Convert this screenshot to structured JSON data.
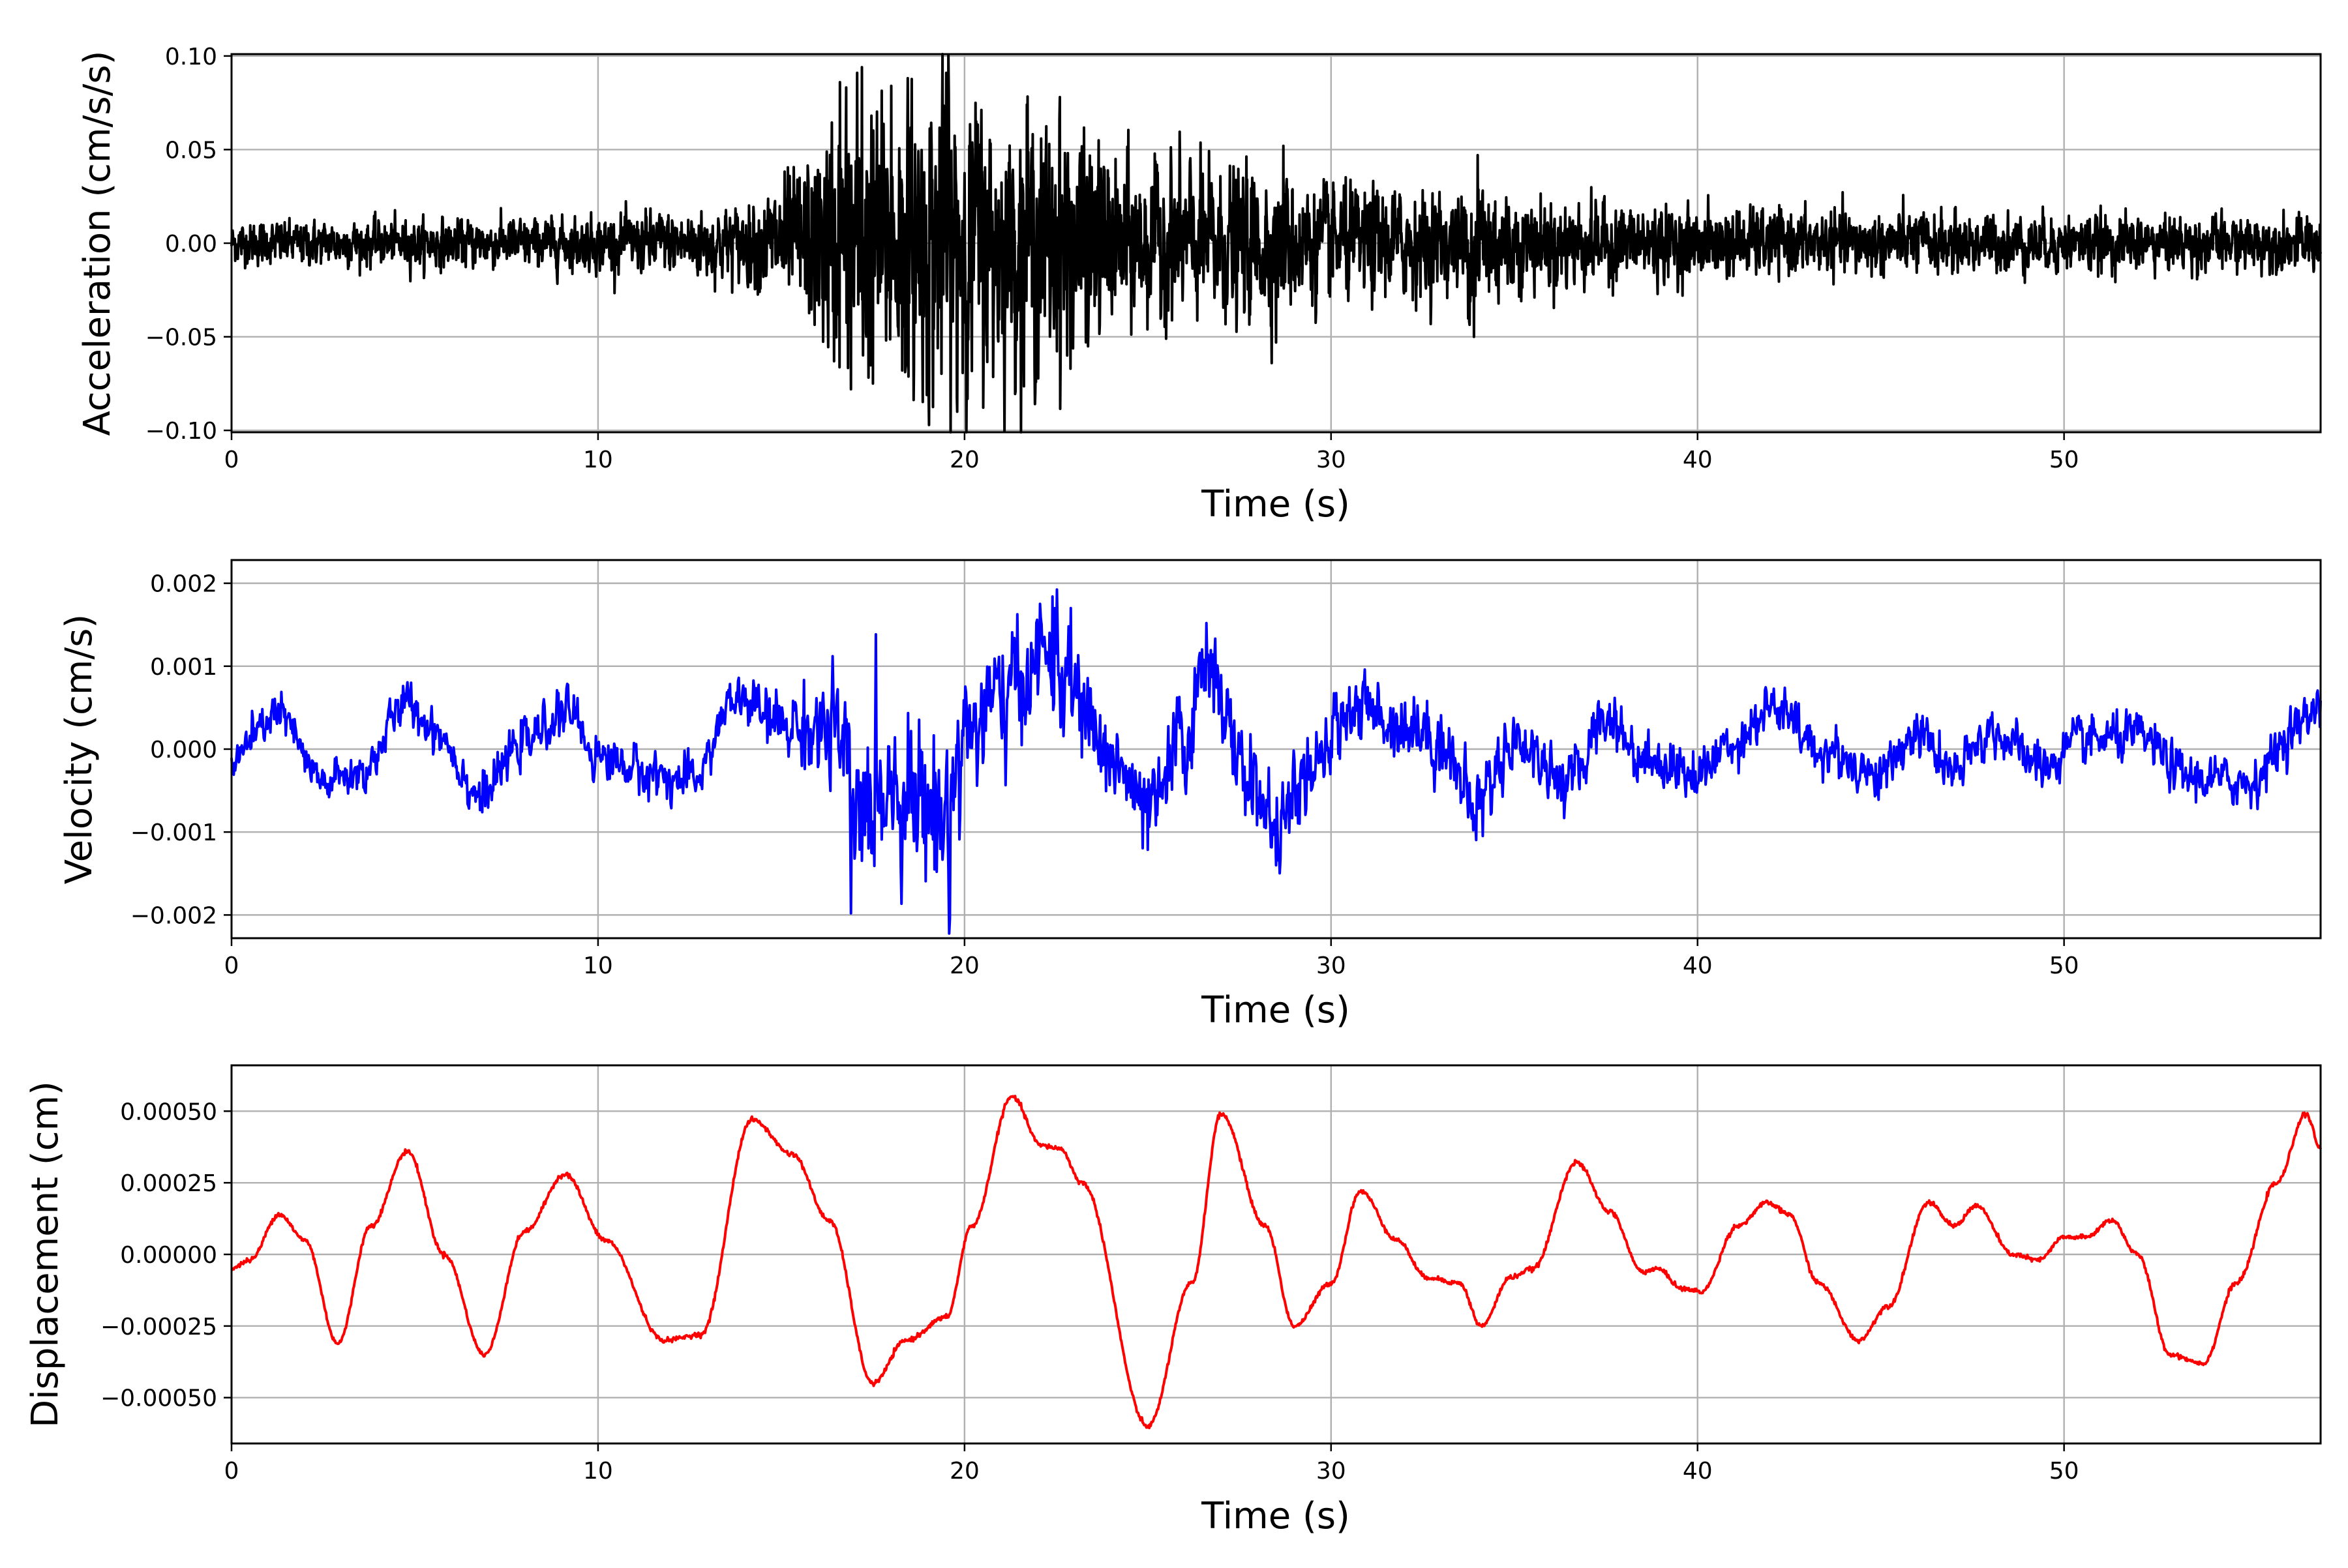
{
  "chart_data": [
    {
      "type": "line",
      "xlabel": "Time (s)",
      "ylabel": "Acceleration (cm/s/s)",
      "xlim": [
        0,
        57
      ],
      "ylim": [
        -0.101,
        0.101
      ],
      "xticks": [
        0,
        10,
        20,
        30,
        40,
        50
      ],
      "xtick_labels": [
        "0",
        "10",
        "20",
        "30",
        "40",
        "50"
      ],
      "yticks": [
        -0.1,
        -0.05,
        0.0,
        0.05,
        0.1
      ],
      "ytick_labels": [
        "−0.10",
        "−0.05",
        "0.00",
        "0.05",
        "0.10"
      ],
      "grid": true,
      "series": [
        {
          "color": "#000000",
          "dt": 0.01,
          "noise": 0.004,
          "envelope": {
            "x": [
              0,
              5,
              10,
              14,
              15.5,
              16.5,
              17,
              18,
              19.5,
              20,
              21,
              22.5,
              24,
              26,
              28,
              30,
              32,
              33.5,
              34,
              35,
              40,
              45,
              50,
              55,
              57
            ],
            "y": [
              0.011,
              0.012,
              0.014,
              0.02,
              0.04,
              0.065,
              0.08,
              0.07,
              0.085,
              0.08,
              0.065,
              0.065,
              0.045,
              0.04,
              0.04,
              0.03,
              0.028,
              0.025,
              0.045,
              0.025,
              0.018,
              0.016,
              0.015,
              0.014,
              0.014
            ]
          },
          "peaks": [
            {
              "x": 16.6,
              "y": 0.086
            },
            {
              "x": 16.9,
              "y": -0.078
            },
            {
              "x": 17.2,
              "y": 0.094
            },
            {
              "x": 17.5,
              "y": -0.075
            },
            {
              "x": 18.0,
              "y": 0.084
            },
            {
              "x": 18.3,
              "y": -0.068
            },
            {
              "x": 19.5,
              "y": 0.091
            },
            {
              "x": 19.8,
              "y": -0.09
            },
            {
              "x": 20.3,
              "y": 0.075
            },
            {
              "x": 21.7,
              "y": 0.074
            },
            {
              "x": 22.6,
              "y": 0.078
            },
            {
              "x": 22.8,
              "y": -0.06
            },
            {
              "x": 28.7,
              "y": 0.052
            },
            {
              "x": 28.5,
              "y": -0.053
            },
            {
              "x": 34.0,
              "y": 0.047
            },
            {
              "x": 33.9,
              "y": -0.05
            }
          ]
        }
      ]
    },
    {
      "type": "line",
      "xlabel": "Time (s)",
      "ylabel": "Velocity (cm/s)",
      "xlim": [
        0,
        57
      ],
      "ylim": [
        -0.00228,
        0.00228
      ],
      "xticks": [
        0,
        10,
        20,
        30,
        40,
        50
      ],
      "xtick_labels": [
        "0",
        "10",
        "20",
        "30",
        "40",
        "50"
      ],
      "yticks": [
        -0.002,
        -0.001,
        0.0,
        0.001,
        0.002
      ],
      "ytick_labels": [
        "−0.002",
        "−0.001",
        "0.000",
        "0.001",
        "0.002"
      ],
      "grid": true,
      "series": [
        {
          "color": "#0000ff",
          "dt": 0.02,
          "noise": 9e-05,
          "envelope": {
            "x": [
              0,
              14,
              15.5,
              16.5,
              17,
              18,
              19.5,
              20,
              21,
              22.5,
              24,
              26.5,
              28,
              30,
              34,
              35,
              40,
              50,
              57
            ],
            "y": [
              0.05,
              0.08,
              0.25,
              0.5,
              0.7,
              0.6,
              0.75,
              0.6,
              0.5,
              0.45,
              0.3,
              0.35,
              0.3,
              0.2,
              0.25,
              0.15,
              0.1,
              0.08,
              0.08
            ]
          },
          "trend": {
            "x": [
              0,
              0.5,
              1.2,
              2.5,
              3.5,
              4.8,
              5.5,
              6.8,
              8,
              9.2,
              10,
              11.5,
              12.5,
              13.8,
              15,
              16.5,
              17,
              18,
              19.5,
              20,
              21,
              22.3,
              23,
              24,
              25,
              26,
              26.7,
              27.5,
              28.5,
              29.5,
              30.5,
              32,
              33,
              33.9,
              35,
              36.5,
              37.5,
              38.5,
              40,
              41,
              42,
              43.5,
              45,
              46,
              47,
              48,
              49.5,
              50.5,
              52,
              53.5,
              55,
              56.5,
              57
            ],
            "y": [
              -0.00025,
              0.0001,
              0.00045,
              -0.0004,
              -0.0003,
              0.00055,
              0.00025,
              -0.00055,
              0.0001,
              0.00045,
              -0.0001,
              -0.0003,
              -0.0004,
              0.0006,
              0.0003,
              0.0002,
              -0.0008,
              -0.0004,
              -0.0008,
              0.0002,
              0.0006,
              0.00115,
              0.0006,
              -0.0001,
              -0.0008,
              0.0001,
              0.0011,
              -0.0002,
              -0.0009,
              -0.0003,
              0.0005,
              0.0003,
              0.0001,
              -0.0007,
              0.0001,
              -0.0004,
              0.0004,
              -0.0001,
              -0.0003,
              0.0001,
              0.0005,
              -5e-05,
              -0.0003,
              0.0002,
              -0.0003,
              0.0002,
              -0.0002,
              0.0001,
              0.00015,
              -0.00035,
              -0.0004,
              0.0003,
              0.0006
            ]
          },
          "peaks": [
            {
              "x": 22.4,
              "y": 0.00184
            },
            {
              "x": 22.9,
              "y": 0.0017
            },
            {
              "x": 26.6,
              "y": 0.00152
            },
            {
              "x": 16.9,
              "y": -0.00198
            },
            {
              "x": 19.6,
              "y": -0.00205
            },
            {
              "x": 28.5,
              "y": -0.0014
            }
          ]
        }
      ]
    },
    {
      "type": "line",
      "xlabel": "Time (s)",
      "ylabel": "Displacement (cm)",
      "xlim": [
        0,
        57
      ],
      "ylim": [
        -0.00066,
        0.00066
      ],
      "xticks": [
        0,
        10,
        20,
        30,
        40,
        50
      ],
      "xtick_labels": [
        "0",
        "10",
        "20",
        "30",
        "40",
        "50"
      ],
      "yticks": [
        -0.0005,
        -0.00025,
        0.0,
        0.00025,
        0.0005
      ],
      "ytick_labels": [
        "−0.00050",
        "−0.00025",
        "0.00000",
        "0.00025",
        "0.00050"
      ],
      "grid": true,
      "series": [
        {
          "color": "#ff0000",
          "dt": 0.02,
          "noise": 4e-06,
          "x": [
            0,
            0.5,
            1.3,
            2.0,
            2.9,
            3.8,
            4.8,
            5.8,
            6.9,
            8.0,
            9.1,
            10.2,
            11.8,
            12.8,
            14.2,
            15.3,
            16.3,
            17.5,
            18.4,
            19.5,
            20.2,
            21.3,
            22.1,
            22.6,
            23.2,
            25.0,
            26.2,
            27.0,
            28.2,
            29.0,
            30.0,
            30.8,
            31.8,
            32.6,
            33.5,
            34.1,
            34.9,
            35.5,
            36.7,
            37.6,
            38.5,
            38.9,
            39.6,
            40.1,
            41.1,
            41.9,
            42.5,
            43.3,
            44.4,
            45.2,
            46.3,
            47.0,
            47.6,
            48.6,
            49.3,
            50.0,
            50.6,
            51.3,
            52.0,
            52.9,
            53.8,
            54.7,
            55.8,
            56.6,
            57.0
          ],
          "y": [
            -5e-05,
            -2e-05,
            0.00014,
            5e-05,
            -0.00031,
            0.0001,
            0.00036,
            0.0,
            -0.00035,
            8e-05,
            0.00028,
            5e-05,
            -0.0003,
            -0.00028,
            0.00047,
            0.00035,
            0.00012,
            -0.00045,
            -0.0003,
            -0.00022,
            0.0001,
            0.00055,
            0.00038,
            0.00037,
            0.00025,
            -0.0006,
            -0.0001,
            0.00049,
            0.0001,
            -0.00025,
            -0.0001,
            0.00022,
            5e-05,
            -8e-05,
            -0.0001,
            -0.00025,
            -8e-05,
            -5e-05,
            0.00032,
            0.00015,
            -6e-05,
            -5e-05,
            -0.00012,
            -0.00013,
            0.0001,
            0.00018,
            0.00014,
            -0.0001,
            -0.0003,
            -0.00018,
            0.00018,
            0.0001,
            0.00017,
            0.0,
            -2e-05,
            6e-05,
            6e-05,
            0.00012,
            0.0,
            -0.00035,
            -0.00038,
            -0.0001,
            0.00025,
            0.00049,
            0.00037
          ]
        }
      ]
    }
  ]
}
